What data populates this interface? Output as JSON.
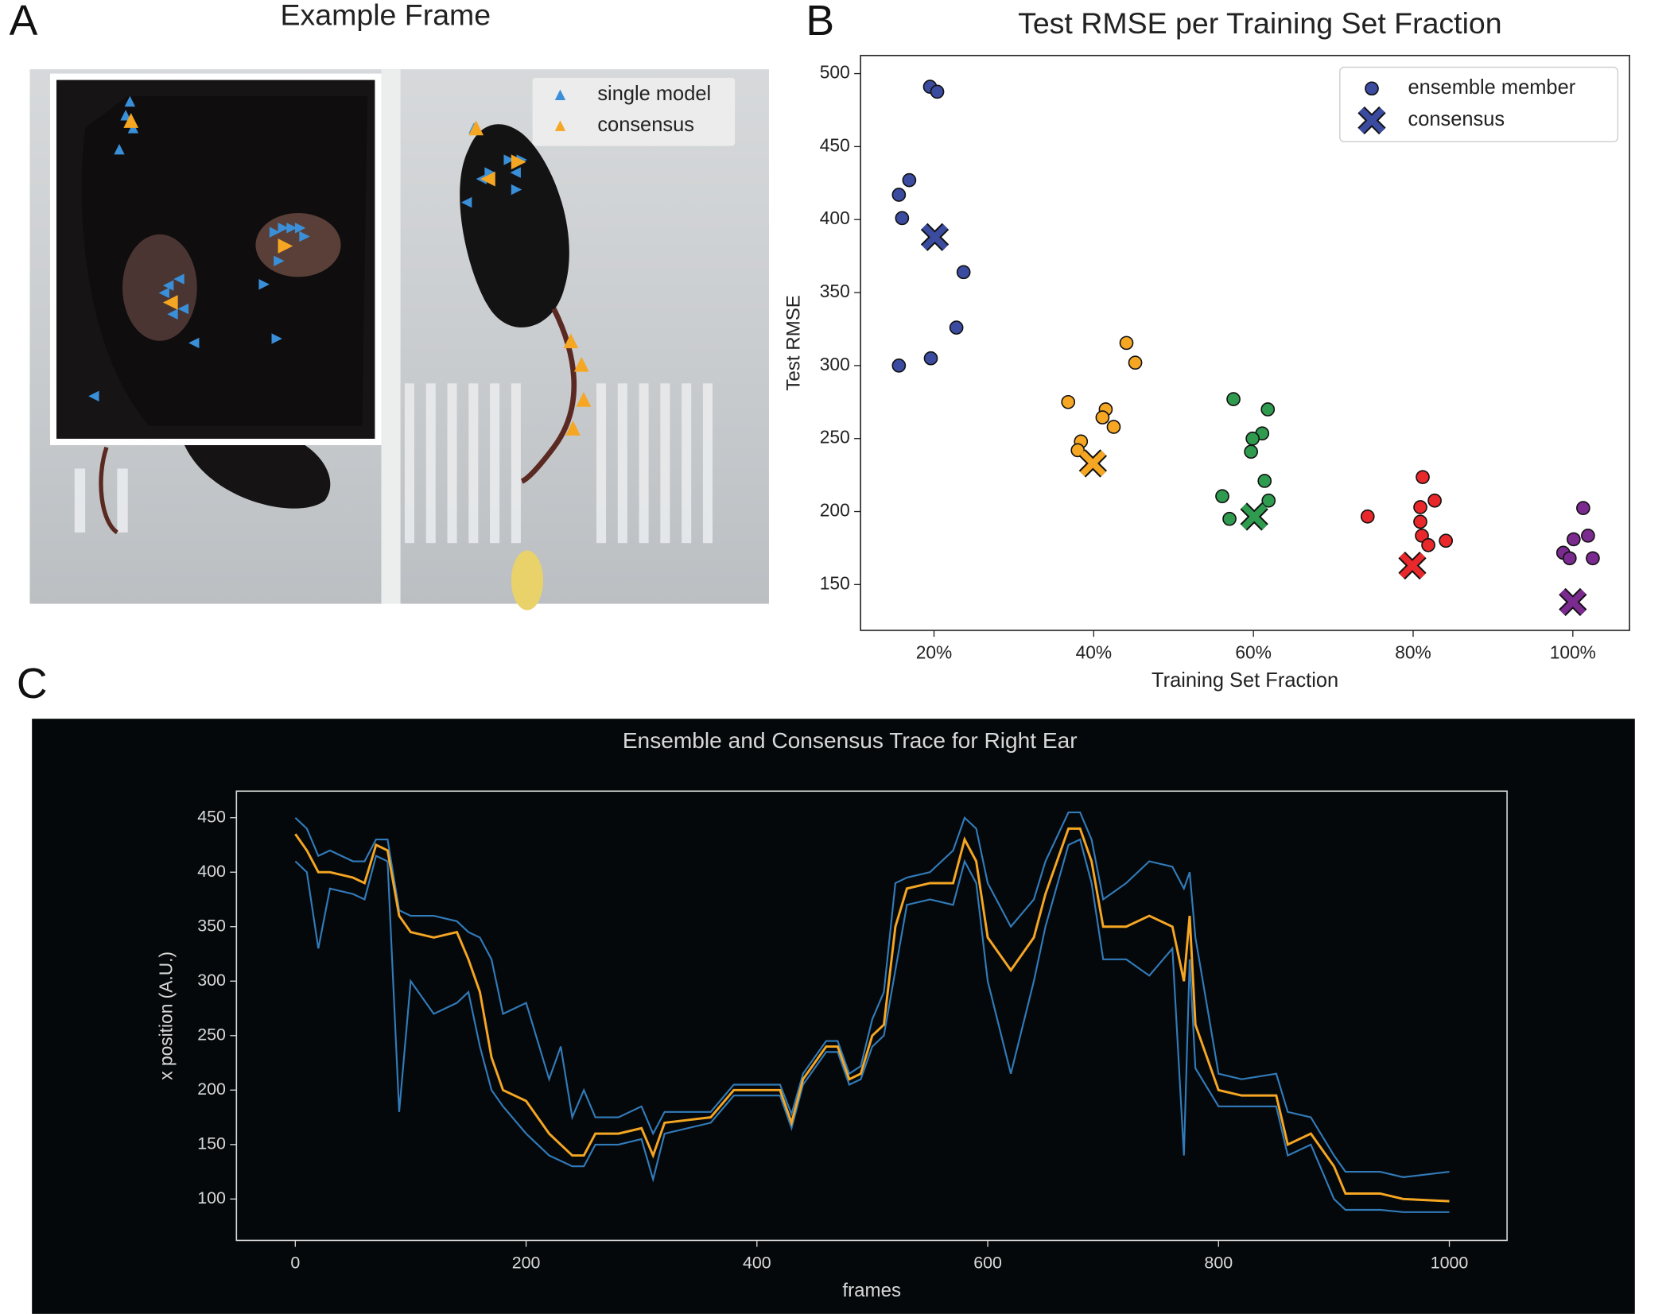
{
  "chart_data": [
    {
      "type": "image",
      "label": "A",
      "title": "Example Frame",
      "series": [
        {
          "name": "single model",
          "color": "#3a8fd9"
        },
        {
          "name": "consensus",
          "color": "#f5a623"
        }
      ]
    },
    {
      "type": "scatter",
      "label": "B",
      "title": "Test RMSE per Training Set Fraction",
      "x_label": "Training Set Fraction",
      "y_label": "Test RMSE",
      "xlim": [
        10.8,
        107.1
      ],
      "ylim": [
        118.6,
        512.4
      ],
      "xticks": [
        {
          "value": 20,
          "label": "20%"
        },
        {
          "value": 40,
          "label": "40%"
        },
        {
          "value": 60,
          "label": "60%"
        },
        {
          "value": 80,
          "label": "80%"
        },
        {
          "value": 100,
          "label": "100%"
        }
      ],
      "yticks": [
        150,
        200,
        250,
        300,
        350,
        400,
        450,
        500
      ],
      "legend": "upper right",
      "series": [
        {
          "name": "ensemble member",
          "marker": "circle",
          "color": "#3b4ba0",
          "x": [
            19.5,
            20.4,
            16.9,
            15.6,
            16,
            23.7,
            22.8,
            19.6,
            15.6,
            36.8,
            41.5,
            44.1,
            45.2,
            41.1,
            42.5,
            38.4,
            38,
            57.5,
            61.8,
            61.1,
            59.9,
            59.7,
            61.4,
            56.1,
            61.9,
            57,
            81.2,
            74.3,
            80.9,
            82.7,
            80.9,
            81.1,
            84.1,
            81.9,
            101.3,
            100.1,
            101.9,
            98.8,
            99.6,
            102.5
          ],
          "values": [
            491,
            487.6,
            427,
            417,
            401,
            364,
            326,
            305,
            300,
            275,
            270,
            315.5,
            302,
            264.5,
            258,
            248,
            242,
            277,
            270,
            253.5,
            250,
            241,
            221,
            210.5,
            207.5,
            195,
            223.6,
            196.6,
            203,
            207.5,
            193,
            183.5,
            180,
            177,
            202.4,
            181,
            183.5,
            171.8,
            168,
            168
          ],
          "colors": [
            "#3b4ba0",
            "#3b4ba0",
            "#3b4ba0",
            "#3b4ba0",
            "#3b4ba0",
            "#3b4ba0",
            "#3b4ba0",
            "#3b4ba0",
            "#3b4ba0",
            "#f5a623",
            "#f5a623",
            "#f5a623",
            "#f5a623",
            "#f5a623",
            "#f5a623",
            "#f5a623",
            "#f5a623",
            "#2e9b4e",
            "#2e9b4e",
            "#2e9b4e",
            "#2e9b4e",
            "#2e9b4e",
            "#2e9b4e",
            "#2e9b4e",
            "#2e9b4e",
            "#2e9b4e",
            "#e8282a",
            "#e8282a",
            "#e8282a",
            "#e8282a",
            "#e8282a",
            "#e8282a",
            "#e8282a",
            "#e8282a",
            "#7b2a8f",
            "#7b2a8f",
            "#7b2a8f",
            "#7b2a8f",
            "#7b2a8f",
            "#7b2a8f"
          ]
        },
        {
          "name": "consensus",
          "marker": "x",
          "color": "#3b4ba0",
          "x": [
            20.1,
            39.9,
            60.1,
            79.9,
            100
          ],
          "values": [
            388,
            233,
            196.5,
            163,
            138
          ],
          "colors": [
            "#3b4ba0",
            "#f5a623",
            "#2e9b4e",
            "#e8282a",
            "#7b2a8f"
          ]
        }
      ]
    },
    {
      "type": "line",
      "label": "C",
      "title": "Ensemble and Consensus Trace for Right Ear",
      "x_label": "frames",
      "y_label": "x position (A.U.)",
      "background": "#05080a",
      "xlim": [
        -51,
        1050
      ],
      "ylim": [
        62,
        474.4
      ],
      "xticks": [
        0,
        200,
        400,
        600,
        800,
        1000
      ],
      "yticks": [
        100,
        150,
        200,
        250,
        300,
        350,
        400,
        450
      ],
      "x": [
        0,
        10,
        20,
        30,
        50,
        60,
        70,
        80,
        90,
        100,
        120,
        140,
        150,
        160,
        170,
        180,
        200,
        220,
        230,
        240,
        250,
        260,
        280,
        300,
        310,
        320,
        360,
        380,
        420,
        430,
        440,
        460,
        470,
        480,
        490,
        500,
        510,
        520,
        530,
        550,
        570,
        580,
        590,
        600,
        620,
        640,
        650,
        670,
        680,
        690,
        700,
        720,
        740,
        760,
        770,
        775,
        780,
        800,
        820,
        850,
        860,
        880,
        900,
        910,
        940,
        960,
        1000
      ],
      "series": [
        {
          "color": "#3a8fd9",
          "values": [
            450,
            440,
            415,
            420,
            410,
            410,
            430,
            430,
            365,
            360,
            360,
            355,
            345,
            340,
            320,
            270,
            280,
            210,
            240,
            175,
            200,
            175,
            175,
            185,
            160,
            180,
            180,
            205,
            205,
            178,
            215,
            245,
            245,
            215,
            222,
            265,
            290,
            390,
            395,
            400,
            420,
            450,
            440,
            390,
            350,
            375,
            410,
            455,
            455,
            430,
            375,
            390,
            410,
            405,
            385,
            400,
            340,
            215,
            210,
            215,
            180,
            175,
            140,
            125,
            125,
            120,
            125
          ]
        },
        {
          "color": "#3a8fd9",
          "values": [
            410,
            400,
            330,
            385,
            380,
            375,
            415,
            410,
            180,
            300,
            270,
            280,
            290,
            240,
            200,
            185,
            160,
            140,
            135,
            130,
            130,
            150,
            150,
            155,
            118,
            160,
            170,
            195,
            195,
            165,
            205,
            235,
            235,
            205,
            210,
            240,
            250,
            310,
            370,
            375,
            370,
            410,
            390,
            300,
            215,
            300,
            350,
            425,
            430,
            390,
            320,
            320,
            305,
            330,
            140,
            320,
            220,
            185,
            185,
            185,
            140,
            150,
            100,
            90,
            90,
            88,
            88
          ]
        },
        {
          "color": "#f5a623",
          "values": [
            435,
            420,
            400,
            400,
            395,
            390,
            425,
            420,
            360,
            345,
            340,
            345,
            320,
            290,
            230,
            200,
            190,
            160,
            150,
            140,
            140,
            160,
            160,
            165,
            140,
            170,
            175,
            200,
            200,
            170,
            210,
            240,
            240,
            210,
            215,
            250,
            260,
            350,
            385,
            390,
            390,
            430,
            410,
            340,
            310,
            340,
            380,
            440,
            440,
            410,
            350,
            350,
            360,
            350,
            300,
            360,
            260,
            200,
            195,
            195,
            150,
            160,
            130,
            105,
            105,
            100,
            98
          ]
        }
      ]
    }
  ]
}
